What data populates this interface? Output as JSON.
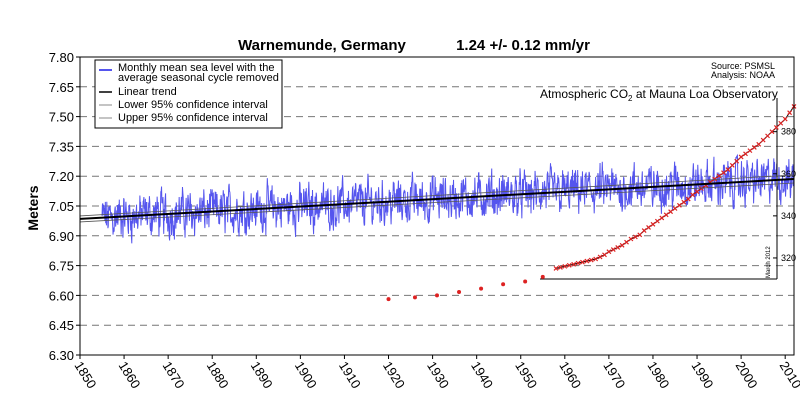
{
  "chart_data": {
    "type": "line",
    "title": "Warnemunde, Germany",
    "subtitle": "1.24 +/- 0.12  mm/yr",
    "source_line1": "Source: PSMSL",
    "source_line2": "Analysis: NOAA",
    "ylabel": "Meters",
    "xlim": [
      1850,
      2012
    ],
    "ylim": [
      6.3,
      7.8
    ],
    "x_ticks": [
      "1850",
      "1860",
      "1870",
      "1880",
      "1890",
      "1900",
      "1910",
      "1920",
      "1930",
      "1940",
      "1950",
      "1960",
      "1970",
      "1980",
      "1990",
      "2000",
      "2010"
    ],
    "y_ticks": [
      "6.30",
      "6.45",
      "6.60",
      "6.75",
      "6.90",
      "7.05",
      "7.20",
      "7.35",
      "7.50",
      "7.65",
      "7.80"
    ],
    "grid": "horizontal dashed",
    "legend_position": "top-left",
    "legend": [
      {
        "label_line1": "Monthly mean sea level with the",
        "label_line2": "average seasonal cycle removed",
        "color": "#5555ee"
      },
      {
        "label_line1": "Linear trend",
        "label_line2": "",
        "color": "#000000"
      },
      {
        "label_line1": "Lower 95% confidence interval",
        "label_line2": "",
        "color": "#888888"
      },
      {
        "label_line1": "Upper 95% confidence interval",
        "label_line2": "",
        "color": "#888888"
      }
    ],
    "series": [
      {
        "name": "Monthly mean sea level with the average seasonal cycle removed",
        "color": "#5555ee",
        "x_start": 1855,
        "x_end": 2012,
        "trend_mm_per_yr": 1.24,
        "trend_value_at_1850": 6.985,
        "typical_range": [
          6.8,
          7.4
        ]
      },
      {
        "name": "Linear trend",
        "color": "#000000",
        "x": [
          1850,
          2012
        ],
        "y": [
          6.985,
          7.186
        ]
      }
    ],
    "inset": {
      "title_main": "Atmospheric CO",
      "title_sub": "2",
      "title_rest": " at Mauna Loa Observatory",
      "y_ticks": [
        "320",
        "340",
        "360",
        "380"
      ],
      "ylim": [
        310,
        396
      ],
      "x_range": [
        1958,
        2012
      ],
      "side_note": "March 2012",
      "color": "#dd2222",
      "early_points": {
        "x": [
          1920,
          1926,
          1931,
          1936,
          1941,
          1946,
          1951,
          1955
        ],
        "y": [
          6.581,
          6.59,
          6.6,
          6.617,
          6.634,
          6.656,
          6.67,
          6.693
        ]
      },
      "values_1958_2012": [
        315,
        315.5,
        316,
        316.5,
        317,
        317.5,
        318,
        318.5,
        319,
        319.5,
        320.5,
        321.5,
        323,
        324,
        325,
        326,
        327.5,
        329,
        330,
        331,
        333,
        334.5,
        336,
        337.5,
        339,
        340.5,
        342,
        343.5,
        345,
        346.5,
        348,
        350,
        351.5,
        353,
        354.5,
        356,
        357.5,
        359,
        360.5,
        362,
        364,
        366,
        368,
        369.5,
        371,
        372.5,
        374,
        376,
        378,
        380,
        382,
        384,
        386,
        389,
        392
      ]
    }
  }
}
